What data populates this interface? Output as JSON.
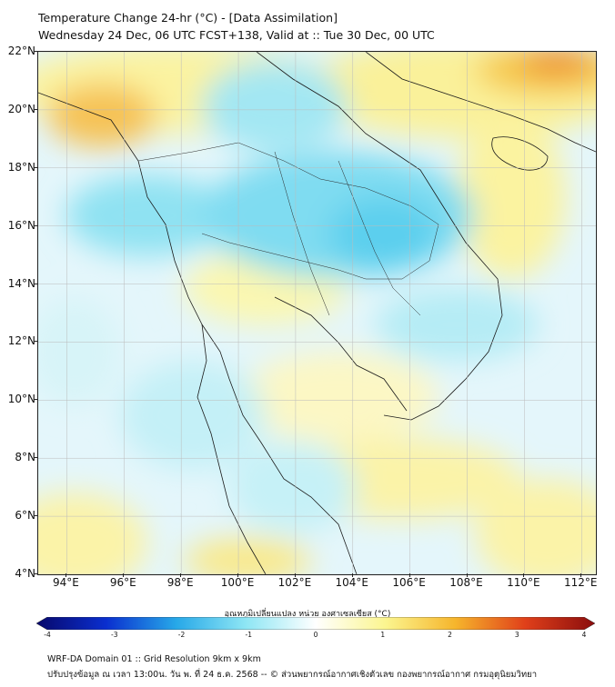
{
  "header": {
    "title_line1": "Temperature Change 24-hr (°C) - [Data Assimilation]",
    "title_line2": "Wednesday 24 Dec, 06 UTC FCST+138, Valid at :: Tue 30 Dec, 00 UTC"
  },
  "map": {
    "lat_range": [
      4,
      22
    ],
    "lon_range": [
      93,
      112.5
    ],
    "lat_labels": [
      "22°N",
      "20°N",
      "18°N",
      "16°N",
      "14°N",
      "12°N",
      "10°N",
      "8°N",
      "6°N",
      "4°N"
    ],
    "lon_labels": [
      "94°E",
      "96°E",
      "98°E",
      "100°E",
      "102°E",
      "104°E",
      "106°E",
      "108°E",
      "110°E",
      "112°E"
    ],
    "grid": true
  },
  "colorbar": {
    "title": "อุณหภูมิเปลี่ยนแปลง หน่วย องศาเซลเซียส (°C)",
    "min": -4,
    "max": 4,
    "tick_labels": [
      "-4",
      "-3",
      "-2",
      "-1",
      "0",
      "1",
      "2",
      "3",
      "4"
    ],
    "colors": [
      "#08086b",
      "#0a2fcf",
      "#27a8e8",
      "#8ee6f4",
      "#ffffff",
      "#fbf58f",
      "#f6b52c",
      "#e0401a",
      "#8a0d0d"
    ]
  },
  "footer": {
    "line1": "WRF-DA Domain 01 :: Grid Resolution 9km x 9km",
    "line2": "ปรับปรุงข้อมูล ณ เวลา 13:00น. วัน พ. ที่ 24 ธ.ค. 2568 -- © ส่วนพยากรณ์อากาศเชิงตัวเลข กองพยากรณ์อากาศ กรมอุตุนิยมวิทยา"
  }
}
